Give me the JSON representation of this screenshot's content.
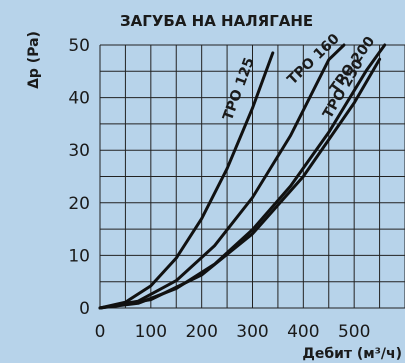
{
  "chart_data": {
    "type": "line",
    "title": "ЗАГУБА НА НАЛЯГАНЕ",
    "xlabel": "Дебит (м³/ч)",
    "ylabel": "Δp (Pa)",
    "xlim": [
      0,
      600
    ],
    "ylim": [
      0,
      50
    ],
    "xticks": [
      0,
      100,
      200,
      300,
      400,
      500
    ],
    "yticks": [
      0,
      10,
      20,
      30,
      40,
      50
    ],
    "grid": true,
    "background_color": "#b7d3ea",
    "line_color": "#111111",
    "series": [
      {
        "name": "TPO 125",
        "x": [
          0,
          50,
          100,
          150,
          200,
          250,
          300,
          340
        ],
        "y": [
          0,
          1.1,
          4.2,
          9.5,
          17,
          26.5,
          38,
          48.5
        ]
      },
      {
        "name": "TPO 160",
        "x": [
          0,
          75,
          150,
          225,
          300,
          375,
          450,
          480
        ],
        "y": [
          0,
          1.3,
          5.2,
          11.8,
          21,
          32.8,
          47.2,
          50
        ]
      },
      {
        "name": "TPO 200",
        "x": [
          0,
          75,
          150,
          225,
          300,
          375,
          450,
          525,
          560
        ],
        "y": [
          0,
          0.9,
          3.7,
          8.3,
          14.9,
          23.2,
          33.4,
          45.3,
          50
        ]
      },
      {
        "name": "TPO 250",
        "x": [
          0,
          100,
          200,
          300,
          400,
          500,
          550
        ],
        "y": [
          0,
          1.6,
          6.3,
          14.1,
          25,
          39,
          47.3
        ]
      }
    ]
  }
}
